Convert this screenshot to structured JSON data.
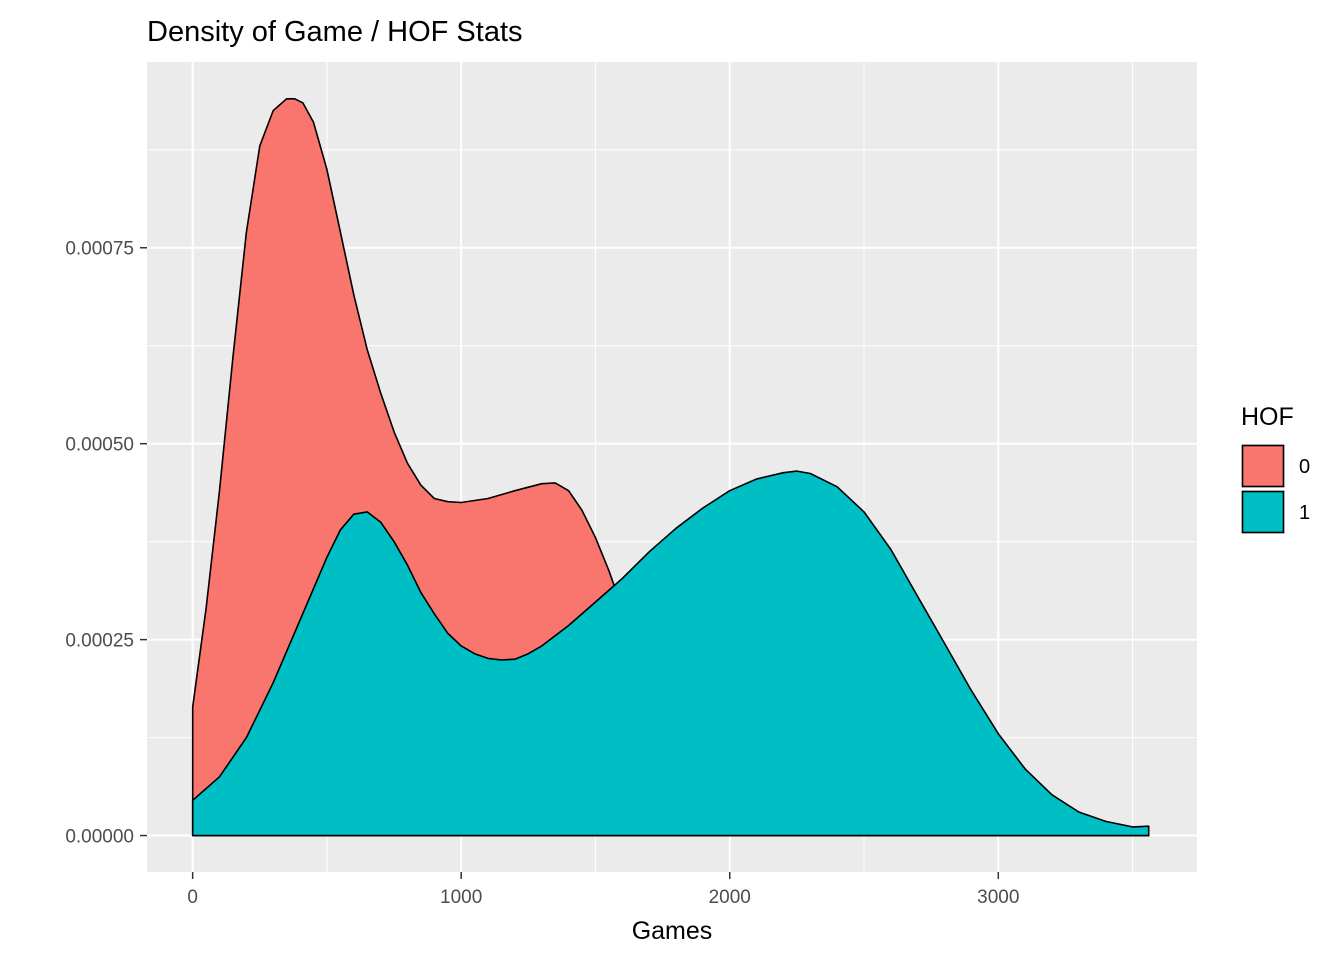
{
  "chart_data": {
    "type": "area",
    "title": "Density of Game / HOF Stats",
    "xlabel": "Games",
    "ylabel": "",
    "xlim": [
      -170,
      3740
    ],
    "ylim": [
      -4.65e-05,
      0.000987
    ],
    "x_ticks": [
      0,
      1000,
      2000,
      3000
    ],
    "x_tick_labels": [
      "0",
      "1000",
      "2000",
      "3000"
    ],
    "y_ticks": [
      0.0,
      0.00025,
      0.0005,
      0.00075
    ],
    "y_tick_labels": [
      "0.00000",
      "0.00025",
      "0.00050",
      "0.00075"
    ],
    "x_minor": [
      500,
      1500,
      2500,
      3500
    ],
    "y_minor": [
      0.000125,
      0.000375,
      0.000625,
      0.000875
    ],
    "grid": true,
    "legend": {
      "title": "HOF",
      "position": "right"
    },
    "series": [
      {
        "name": "0",
        "color": "#F8766D",
        "x": [
          0,
          50,
          100,
          150,
          200,
          250,
          300,
          350,
          380,
          410,
          450,
          500,
          550,
          600,
          650,
          700,
          750,
          800,
          850,
          900,
          950,
          1000,
          1100,
          1200,
          1300,
          1350,
          1400,
          1450,
          1500,
          1550,
          1600,
          1650,
          1700,
          1750,
          1800,
          1900,
          2000,
          2100,
          2200,
          2300,
          2400,
          2500,
          2600,
          2700,
          2800,
          2900,
          3000,
          3100,
          3200,
          3300,
          3400,
          3450,
          3500,
          3560
        ],
        "values": [
          0.000164,
          0.00029,
          0.00044,
          0.00061,
          0.00077,
          0.00088,
          0.000925,
          0.00094,
          0.00094,
          0.000935,
          0.00091,
          0.00085,
          0.00077,
          0.00069,
          0.00062,
          0.000565,
          0.000515,
          0.000475,
          0.000447,
          0.00043,
          0.000426,
          0.000425,
          0.00043,
          0.00044,
          0.000449,
          0.00045,
          0.00044,
          0.000415,
          0.00038,
          0.000338,
          0.00029,
          0.000248,
          0.000212,
          0.000182,
          0.000158,
          0.000122,
          9.7e-05,
          7.8e-05,
          6.4e-05,
          5.3e-05,
          4.5e-05,
          3.8e-05,
          3.2e-05,
          2.7e-05,
          2.3e-05,
          2e-05,
          1.7e-05,
          1.5e-05,
          1.3e-05,
          1.2e-05,
          1.1e-05,
          1e-05,
          9e-06,
          8e-06
        ]
      },
      {
        "name": "1",
        "color": "#00BFC4",
        "x": [
          0,
          100,
          200,
          300,
          400,
          500,
          550,
          600,
          650,
          700,
          750,
          800,
          850,
          900,
          950,
          1000,
          1050,
          1100,
          1150,
          1200,
          1250,
          1300,
          1400,
          1500,
          1600,
          1700,
          1800,
          1900,
          2000,
          2100,
          2200,
          2250,
          2300,
          2400,
          2500,
          2600,
          2700,
          2800,
          2900,
          3000,
          3100,
          3200,
          3300,
          3400,
          3500,
          3560
        ],
        "values": [
          4.5e-05,
          7.5e-05,
          0.000125,
          0.000195,
          0.000275,
          0.000355,
          0.00039,
          0.00041,
          0.000413,
          0.0004,
          0.000375,
          0.000345,
          0.00031,
          0.000283,
          0.000258,
          0.000242,
          0.000232,
          0.000226,
          0.000224,
          0.000225,
          0.000232,
          0.000242,
          0.000268,
          0.000298,
          0.000328,
          0.000362,
          0.000392,
          0.000418,
          0.00044,
          0.000455,
          0.000463,
          0.000465,
          0.000462,
          0.000445,
          0.000413,
          0.000365,
          0.000305,
          0.000245,
          0.000185,
          0.00013,
          8.5e-05,
          5.2e-05,
          3e-05,
          1.8e-05,
          1.1e-05,
          1.2e-05
        ]
      }
    ]
  }
}
